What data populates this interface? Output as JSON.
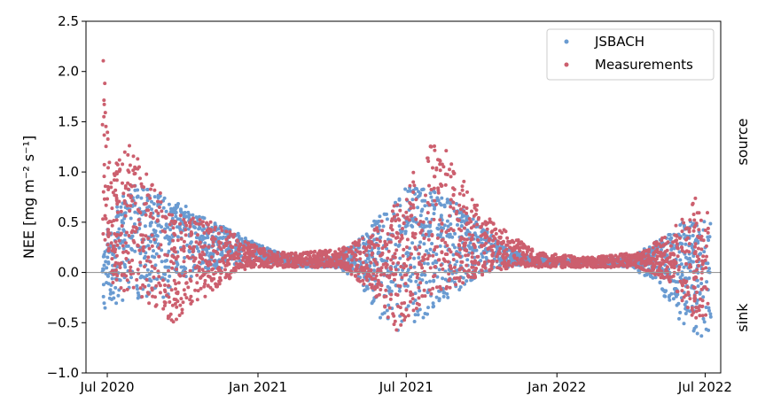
{
  "chart_data": {
    "type": "scatter",
    "title": "",
    "xlabel": "",
    "ylabel": "NEE [mg m⁻² s⁻¹]",
    "ylim": [
      -1.0,
      2.5
    ],
    "xlim": [
      "2020-06-05",
      "2022-07-20"
    ],
    "yticks": [
      -1.0,
      -0.5,
      0.0,
      0.5,
      1.0,
      1.5,
      2.0,
      2.5
    ],
    "ytick_labels": [
      "−1.0",
      "−0.5",
      "0.0",
      "0.5",
      "1.0",
      "1.5",
      "2.0",
      "2.5"
    ],
    "xticks": [
      "2020-07-01",
      "2021-01-01",
      "2021-07-01",
      "2022-01-01",
      "2022-07-01"
    ],
    "xtick_labels": [
      "Jul 2020",
      "Jan 2021",
      "Jul 2021",
      "Jan 2022",
      "Jul 2022"
    ],
    "hline": 0.0,
    "grid": false,
    "legend": "top-right",
    "right_annotations": {
      "top": "source",
      "bottom": "sink"
    },
    "series": [
      {
        "name": "JSBACH",
        "color": "#6a9bd1",
        "marker": "dot",
        "envelope": [
          {
            "date": "2020-06-25",
            "min": -0.4,
            "max": 0.35
          },
          {
            "date": "2020-07-15",
            "min": -0.3,
            "max": 0.7
          },
          {
            "date": "2020-08-01",
            "min": -0.25,
            "max": 0.88
          },
          {
            "date": "2020-08-20",
            "min": -0.3,
            "max": 0.85
          },
          {
            "date": "2020-09-10",
            "min": -0.25,
            "max": 0.75
          },
          {
            "date": "2020-10-01",
            "min": -0.1,
            "max": 0.68
          },
          {
            "date": "2020-11-01",
            "min": 0.0,
            "max": 0.52
          },
          {
            "date": "2020-12-01",
            "min": 0.05,
            "max": 0.42
          },
          {
            "date": "2021-01-01",
            "min": 0.08,
            "max": 0.28
          },
          {
            "date": "2021-02-01",
            "min": 0.08,
            "max": 0.18
          },
          {
            "date": "2021-03-01",
            "min": 0.05,
            "max": 0.12
          },
          {
            "date": "2021-04-01",
            "min": 0.05,
            "max": 0.15
          },
          {
            "date": "2021-05-01",
            "min": -0.05,
            "max": 0.3
          },
          {
            "date": "2021-06-01",
            "min": -0.55,
            "max": 0.6
          },
          {
            "date": "2021-07-01",
            "min": -0.6,
            "max": 0.85
          },
          {
            "date": "2021-08-01",
            "min": -0.4,
            "max": 0.82
          },
          {
            "date": "2021-09-01",
            "min": -0.2,
            "max": 0.7
          },
          {
            "date": "2021-10-01",
            "min": 0.0,
            "max": 0.45
          },
          {
            "date": "2021-11-01",
            "min": 0.05,
            "max": 0.25
          },
          {
            "date": "2021-12-01",
            "min": 0.08,
            "max": 0.15
          },
          {
            "date": "2022-02-01",
            "min": 0.08,
            "max": 0.12
          },
          {
            "date": "2022-04-01",
            "min": 0.05,
            "max": 0.15
          },
          {
            "date": "2022-05-01",
            "min": -0.1,
            "max": 0.3
          },
          {
            "date": "2022-06-01",
            "min": -0.5,
            "max": 0.5
          },
          {
            "date": "2022-07-08",
            "min": -0.72,
            "max": 0.55
          }
        ]
      },
      {
        "name": "Measurements",
        "color": "#cc5f6e",
        "marker": "dot",
        "envelope": [
          {
            "date": "2020-06-25",
            "min": 0.4,
            "max": 2.3
          },
          {
            "date": "2020-07-05",
            "min": -0.1,
            "max": 1.0
          },
          {
            "date": "2020-07-25",
            "min": -0.2,
            "max": 1.3
          },
          {
            "date": "2020-08-20",
            "min": -0.3,
            "max": 1.0
          },
          {
            "date": "2020-09-20",
            "min": -0.5,
            "max": 0.6
          },
          {
            "date": "2020-10-20",
            "min": -0.3,
            "max": 0.55
          },
          {
            "date": "2020-11-20",
            "min": -0.1,
            "max": 0.45
          },
          {
            "date": "2020-12-20",
            "min": 0.05,
            "max": 0.3
          },
          {
            "date": "2021-01-20",
            "min": 0.05,
            "max": 0.2
          },
          {
            "date": "2021-03-01",
            "min": 0.05,
            "max": 0.2
          },
          {
            "date": "2021-04-15",
            "min": 0.05,
            "max": 0.25
          },
          {
            "date": "2021-05-20",
            "min": -0.2,
            "max": 0.4
          },
          {
            "date": "2021-06-20",
            "min": -0.6,
            "max": 0.7
          },
          {
            "date": "2021-07-20",
            "min": -0.3,
            "max": 1.2
          },
          {
            "date": "2021-08-10",
            "min": -0.2,
            "max": 1.35
          },
          {
            "date": "2021-09-10",
            "min": -0.1,
            "max": 0.9
          },
          {
            "date": "2021-10-10",
            "min": 0.0,
            "max": 0.55
          },
          {
            "date": "2021-11-10",
            "min": 0.05,
            "max": 0.35
          },
          {
            "date": "2021-12-10",
            "min": 0.05,
            "max": 0.2
          },
          {
            "date": "2022-02-10",
            "min": 0.05,
            "max": 0.15
          },
          {
            "date": "2022-04-10",
            "min": 0.05,
            "max": 0.2
          },
          {
            "date": "2022-05-20",
            "min": -0.1,
            "max": 0.4
          },
          {
            "date": "2022-06-20",
            "min": -0.5,
            "max": 0.75
          },
          {
            "date": "2022-07-05",
            "min": -0.45,
            "max": 0.6
          }
        ]
      }
    ]
  }
}
